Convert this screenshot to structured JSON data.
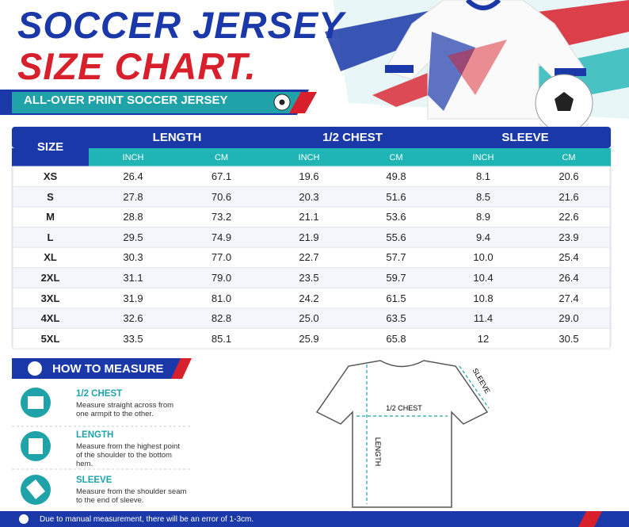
{
  "header": {
    "title_line1": "SOCCER JERSEY",
    "title_line2": "SIZE CHART.",
    "subtitle": "ALL-OVER PRINT SOCCER JERSEY"
  },
  "table": {
    "size_header": "SIZE",
    "groups": [
      "LENGTH",
      "1/2 CHEST",
      "SLEEVE"
    ],
    "units": [
      "INCH",
      "CM",
      "INCH",
      "CM",
      "INCH",
      "CM"
    ],
    "rows": [
      [
        "XS",
        "26.4",
        "67.1",
        "19.6",
        "49.8",
        "8.1",
        "20.6"
      ],
      [
        "S",
        "27.8",
        "70.6",
        "20.3",
        "51.6",
        "8.5",
        "21.6"
      ],
      [
        "M",
        "28.8",
        "73.2",
        "21.1",
        "53.6",
        "8.9",
        "22.6"
      ],
      [
        "L",
        "29.5",
        "74.9",
        "21.9",
        "55.6",
        "9.4",
        "23.9"
      ],
      [
        "XL",
        "30.3",
        "77.0",
        "22.7",
        "57.7",
        "10.0",
        "25.4"
      ],
      [
        "2XL",
        "31.1",
        "79.0",
        "23.5",
        "59.7",
        "10.4",
        "26.4"
      ],
      [
        "3XL",
        "31.9",
        "81.0",
        "24.2",
        "61.5",
        "10.8",
        "27.4"
      ],
      [
        "4XL",
        "32.6",
        "82.8",
        "25.0",
        "63.5",
        "11.4",
        "29.0"
      ],
      [
        "5XL",
        "33.5",
        "85.1",
        "25.9",
        "65.8",
        "12",
        "30.5"
      ]
    ]
  },
  "measure": {
    "title": "HOW TO MEASURE",
    "items": [
      {
        "title": "1/2 CHEST",
        "text": "Measure straight across from one armpit to the other."
      },
      {
        "title": "LENGTH",
        "text": "Measure from the highest point of the shoulder to the bottom hem."
      },
      {
        "title": "SLEEVE",
        "text": "Measure from the shoulder seam to the end of sleeve."
      }
    ]
  },
  "diagram": {
    "chest": "1/2 CHEST",
    "length": "LENGTH",
    "sleeve": "SLEEVE"
  },
  "footer": "Due to manual measurement, there will be an error of 1-3cm."
}
